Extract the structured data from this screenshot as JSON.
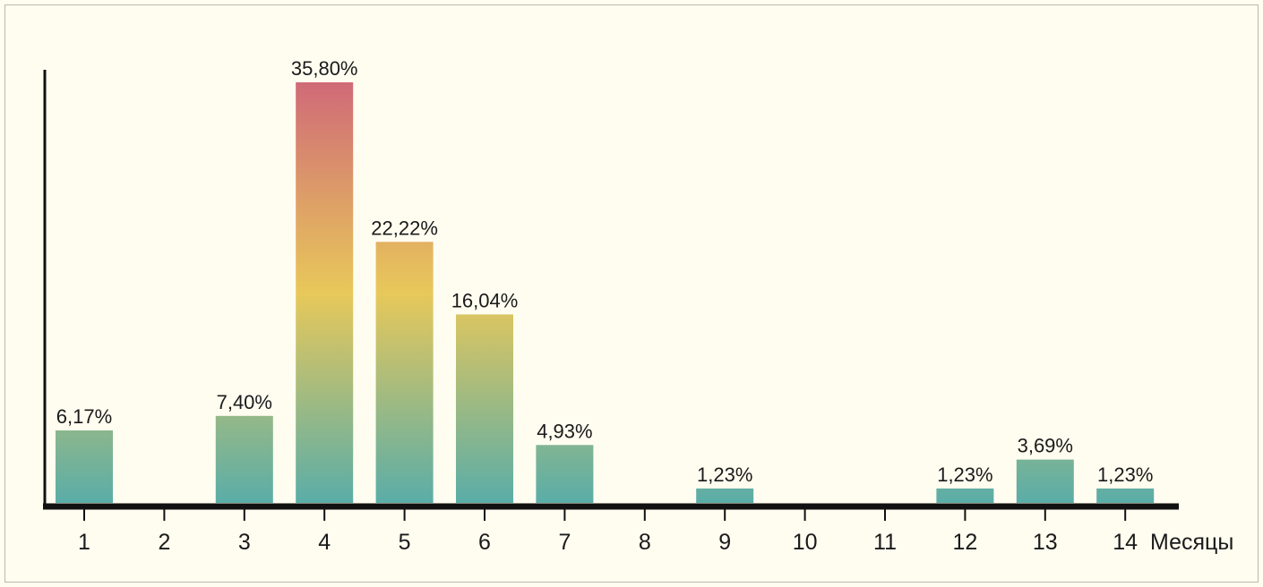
{
  "chart_data": {
    "type": "bar",
    "categories": [
      "1",
      "2",
      "3",
      "4",
      "5",
      "6",
      "7",
      "8",
      "9",
      "10",
      "11",
      "12",
      "13",
      "14"
    ],
    "values": [
      6.17,
      0,
      7.4,
      35.8,
      22.22,
      16.04,
      4.93,
      0,
      1.23,
      0,
      0,
      1.23,
      3.69,
      1.23
    ],
    "value_labels": [
      "6,17%",
      "",
      "7,40%",
      "35,80%",
      "22,22%",
      "16,04%",
      "4,93%",
      "",
      "1,23%",
      "",
      "",
      "1,23%",
      "3,69%",
      "1,23%"
    ],
    "title": "",
    "xlabel": "Месяцы",
    "ylabel": "",
    "ylim": [
      0,
      37.5
    ],
    "grid": false,
    "colors": {
      "background": "#fffdf0",
      "gradient_bottom": "#5aada8",
      "gradient_middle": "#e8c85a",
      "gradient_top": "#d06a78",
      "axis": "#111111"
    }
  }
}
